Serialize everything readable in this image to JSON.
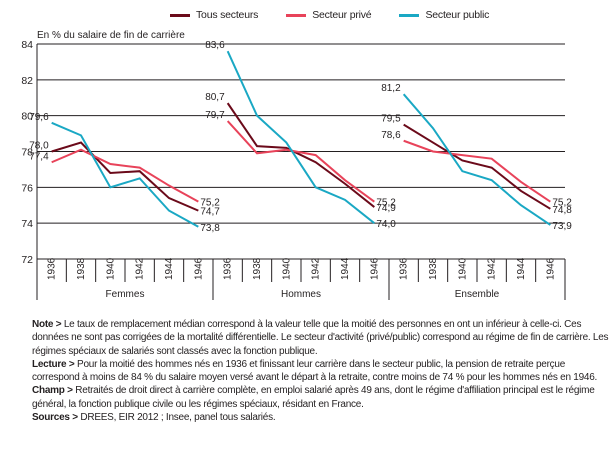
{
  "chart_data": {
    "type": "line",
    "title": "",
    "ylabel": "En % du salaire de fin de carrière",
    "xlabel": "",
    "ylim": [
      72,
      84
    ],
    "yticks": [
      72,
      74,
      76,
      78,
      80,
      82,
      84
    ],
    "grid": true,
    "legend_position": "top-center",
    "groups": [
      {
        "name": "Femmes",
        "years": [
          "1936",
          "1938",
          "1940",
          "1942",
          "1944",
          "1946"
        ]
      },
      {
        "name": "Hommes",
        "years": [
          "1936",
          "1938",
          "1940",
          "1942",
          "1944",
          "1946"
        ]
      },
      {
        "name": "Ensemble",
        "years": [
          "1936",
          "1938",
          "1940",
          "1942",
          "1944",
          "1946"
        ]
      }
    ],
    "series": [
      {
        "name": "Tous secteurs",
        "color": "#6b0a1a",
        "values": [
          [
            78.0,
            78.5,
            76.8,
            76.9,
            75.4,
            74.7
          ],
          [
            80.7,
            78.3,
            78.2,
            77.4,
            76.2,
            74.9
          ],
          [
            79.5,
            78.5,
            77.5,
            77.1,
            75.8,
            74.8
          ]
        ],
        "labels": [
          [
            "78,0",
            "74,7"
          ],
          [
            "80,7",
            "74,9"
          ],
          [
            "79,5",
            "74,8"
          ]
        ]
      },
      {
        "name": "Secteur privé",
        "color": "#e8435a",
        "values": [
          [
            77.4,
            78.1,
            77.3,
            77.1,
            76.1,
            75.2
          ],
          [
            79.7,
            77.9,
            78.1,
            77.8,
            76.4,
            75.2
          ],
          [
            78.6,
            78.0,
            77.8,
            77.6,
            76.3,
            75.2
          ]
        ],
        "labels": [
          [
            "77,4",
            "75,2"
          ],
          [
            "79,7",
            "75,2"
          ],
          [
            "78,6",
            "75,2"
          ]
        ]
      },
      {
        "name": "Secteur public",
        "color": "#1aa8c4",
        "values": [
          [
            79.6,
            78.9,
            76.0,
            76.5,
            74.7,
            73.8
          ],
          [
            83.6,
            80.0,
            78.5,
            76.0,
            75.3,
            74.0
          ],
          [
            81.2,
            79.3,
            76.9,
            76.4,
            75.0,
            73.9
          ]
        ],
        "labels": [
          [
            "79,6",
            "73,8"
          ],
          [
            "83,6",
            "74,0"
          ],
          [
            "81,2",
            "73,9"
          ]
        ]
      }
    ]
  },
  "notes": [
    {
      "label": "Note >",
      "text": " Le taux de remplacement médian correspond à la valeur telle que la moitié des personnes en ont un inférieur à celle-ci. Ces données ne sont pas corrigées de la mortalité différentielle. Le secteur d'activité (privé/public) correspond au régime de fin de carrière. Les régimes spéciaux de salariés sont classés avec la fonction publique."
    },
    {
      "label": "Lecture >",
      "text": " Pour la moitié des hommes nés en 1936 et finissant leur carrière dans le secteur public, la pension de retraite perçue correspond à moins de 84 % du salaire moyen versé avant le départ à la retraite, contre moins de 74 % pour les hommes nés en 1946."
    },
    {
      "label": "Champ >",
      "text": " Retraités de droit direct à carrière complète, en emploi salarié après 49 ans, dont le régime d'affiliation principal est le régime général, la fonction publique civile ou les régimes spéciaux, résidant en France."
    },
    {
      "label": "Sources >",
      "text": " DREES, EIR 2012 ; Insee, panel tous salariés."
    }
  ]
}
